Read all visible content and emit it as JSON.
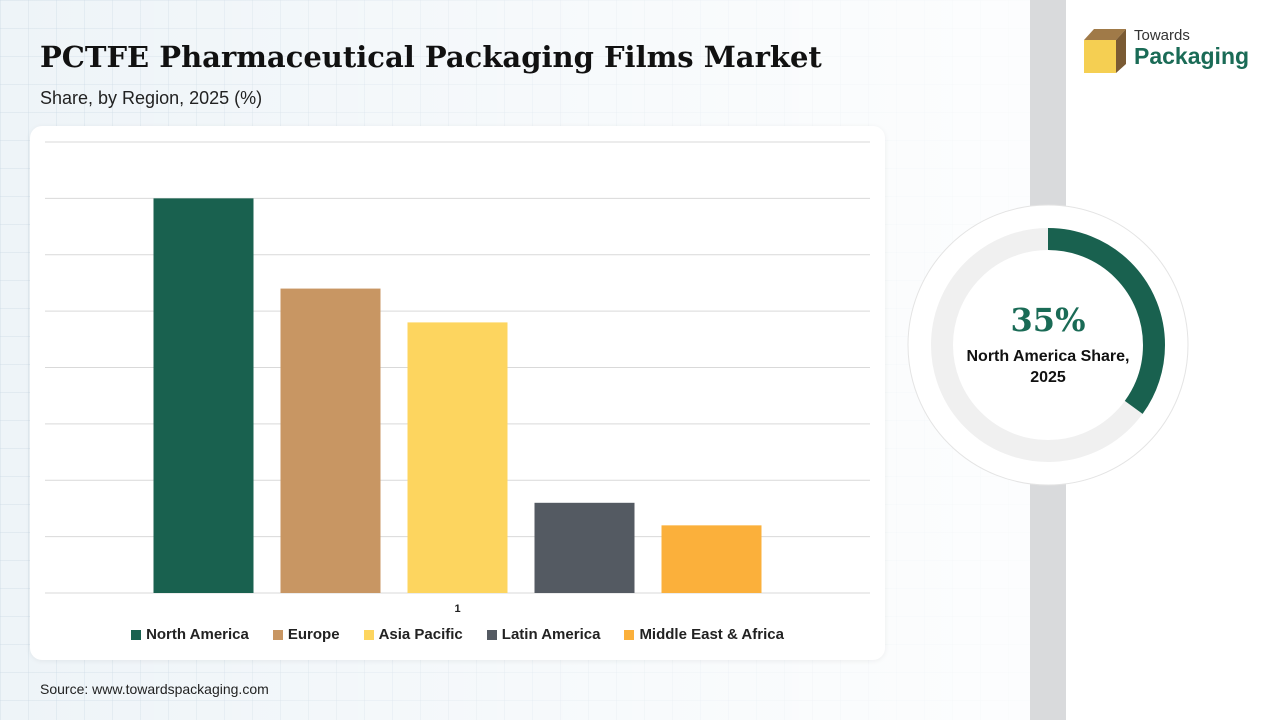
{
  "header": {
    "title": "PCTFE Pharmaceutical Packaging Films Market",
    "subtitle": "Share, by Region, 2025 (%)"
  },
  "logo": {
    "line1": "Towards",
    "line2": "Packaging"
  },
  "highlight": {
    "value_text": "35%",
    "value": 35,
    "caption": "North America Share, 2025",
    "color": "#19614f",
    "track_color": "#f0f0f0"
  },
  "source": "Source: www.towardspackaging.com",
  "colors": {
    "gridline": "#d9d9d9",
    "background": "#eef4f8",
    "logo_green": "#1a6b56",
    "logo_gold": "#f5cf52",
    "logo_brown": "#a07a48"
  },
  "chart_data": {
    "type": "bar",
    "categories": [
      "1"
    ],
    "ylim": [
      0,
      40
    ],
    "grid": true,
    "legend_position": "bottom",
    "series": [
      {
        "name": "North America",
        "values": [
          35
        ],
        "color": "#19614f"
      },
      {
        "name": "Europe",
        "values": [
          27
        ],
        "color": "#c89663"
      },
      {
        "name": "Asia Pacific",
        "values": [
          24
        ],
        "color": "#fdd55f"
      },
      {
        "name": "Latin America",
        "values": [
          8
        ],
        "color": "#545a62"
      },
      {
        "name": "Middle East & Africa",
        "values": [
          6
        ],
        "color": "#fbb03b"
      }
    ]
  }
}
